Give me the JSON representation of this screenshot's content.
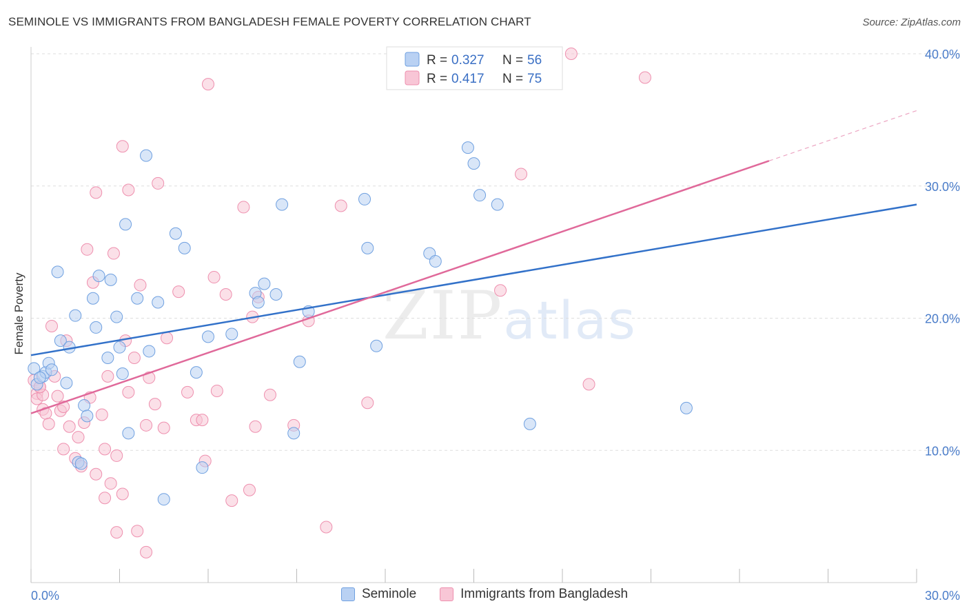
{
  "title": "SEMINOLE VS IMMIGRANTS FROM BANGLADESH FEMALE POVERTY CORRELATION CHART",
  "source": "Source: ZipAtlas.com",
  "watermark": {
    "zip": "ZIP",
    "atlas": "atlas"
  },
  "colors": {
    "blue": "#6fa0e0",
    "blue_fill": "#b9d1f3",
    "blue_line": "#3271c9",
    "pink": "#ee8fae",
    "pink_fill": "#f8c6d6",
    "pink_line": "#e0699a",
    "grid": "#dddddd",
    "axis_label": "#4a7cc9"
  },
  "legend": {
    "rows": [
      {
        "r_label": "R =",
        "r_value": "0.327",
        "n_label": "N =",
        "n_value": "56"
      },
      {
        "r_label": "R =",
        "r_value": "0.417",
        "n_label": "N =",
        "n_value": "75"
      }
    ]
  },
  "bottom_legend": {
    "series1": "Seminole",
    "series2": "Immigrants from Bangladesh"
  },
  "chart_data": {
    "type": "scatter",
    "title": "SEMINOLE VS IMMIGRANTS FROM BANGLADESH FEMALE POVERTY CORRELATION CHART",
    "xlabel": "",
    "ylabel": "Female Poverty",
    "xlim": [
      0,
      30
    ],
    "ylim": [
      0,
      40
    ],
    "x_tick_labels": [
      "0.0%",
      "30.0%"
    ],
    "y_ticks": [
      10,
      20,
      30,
      40
    ],
    "y_tick_labels": [
      "10.0%",
      "20.0%",
      "30.0%",
      "40.0%"
    ],
    "series": [
      {
        "name": "Seminole",
        "R": 0.327,
        "N": 56,
        "trend": {
          "x0": 0,
          "y0": 17.2,
          "x1": 30,
          "y1": 28.6
        },
        "points": [
          [
            0.1,
            16.2
          ],
          [
            0.2,
            15.0
          ],
          [
            0.4,
            15.6
          ],
          [
            0.5,
            15.9
          ],
          [
            0.6,
            16.6
          ],
          [
            0.7,
            16.1
          ],
          [
            0.9,
            23.5
          ],
          [
            1.0,
            18.3
          ],
          [
            1.2,
            15.1
          ],
          [
            1.3,
            17.8
          ],
          [
            1.5,
            20.2
          ],
          [
            1.6,
            9.1
          ],
          [
            1.7,
            9.0
          ],
          [
            1.8,
            13.4
          ],
          [
            1.9,
            12.6
          ],
          [
            2.1,
            21.5
          ],
          [
            2.2,
            19.3
          ],
          [
            2.3,
            23.2
          ],
          [
            2.6,
            17.0
          ],
          [
            2.7,
            22.9
          ],
          [
            2.9,
            20.1
          ],
          [
            3.0,
            17.8
          ],
          [
            3.1,
            15.8
          ],
          [
            3.2,
            27.1
          ],
          [
            3.3,
            11.3
          ],
          [
            3.6,
            21.5
          ],
          [
            3.9,
            32.3
          ],
          [
            4.0,
            17.5
          ],
          [
            4.3,
            21.2
          ],
          [
            4.5,
            6.3
          ],
          [
            4.9,
            26.4
          ],
          [
            5.2,
            25.3
          ],
          [
            5.6,
            15.9
          ],
          [
            5.8,
            8.7
          ],
          [
            6.0,
            18.6
          ],
          [
            6.8,
            18.8
          ],
          [
            7.6,
            21.9
          ],
          [
            7.7,
            21.2
          ],
          [
            7.9,
            22.6
          ],
          [
            8.3,
            21.8
          ],
          [
            8.5,
            28.6
          ],
          [
            8.9,
            11.3
          ],
          [
            9.1,
            16.7
          ],
          [
            9.4,
            20.5
          ],
          [
            11.3,
            29.0
          ],
          [
            11.4,
            25.3
          ],
          [
            11.7,
            17.9
          ],
          [
            13.5,
            24.9
          ],
          [
            13.7,
            24.3
          ],
          [
            14.8,
            32.9
          ],
          [
            15.0,
            31.7
          ],
          [
            15.2,
            29.3
          ],
          [
            15.8,
            28.6
          ],
          [
            16.9,
            12.0
          ],
          [
            22.2,
            13.2
          ],
          [
            0.3,
            15.5
          ]
        ]
      },
      {
        "name": "Immigrants from Bangladesh",
        "R": 0.417,
        "N": 75,
        "trend": {
          "x0": 0,
          "y0": 12.8,
          "x1": 25,
          "y1": 31.9
        },
        "trend_dashed": {
          "x0": 25,
          "y0": 31.9,
          "x1": 30,
          "y1": 35.7
        },
        "points": [
          [
            0.1,
            15.3
          ],
          [
            0.2,
            14.3
          ],
          [
            0.2,
            13.9
          ],
          [
            0.3,
            14.8
          ],
          [
            0.4,
            13.1
          ],
          [
            0.4,
            14.2
          ],
          [
            0.5,
            12.8
          ],
          [
            0.6,
            12.0
          ],
          [
            0.7,
            19.4
          ],
          [
            0.8,
            15.6
          ],
          [
            0.9,
            14.1
          ],
          [
            1.0,
            13.0
          ],
          [
            1.1,
            13.3
          ],
          [
            1.1,
            10.1
          ],
          [
            1.2,
            18.3
          ],
          [
            1.3,
            11.8
          ],
          [
            1.5,
            9.4
          ],
          [
            1.6,
            11.0
          ],
          [
            1.7,
            8.8
          ],
          [
            1.8,
            12.1
          ],
          [
            1.9,
            25.2
          ],
          [
            2.0,
            14.0
          ],
          [
            2.1,
            22.7
          ],
          [
            2.2,
            8.2
          ],
          [
            2.2,
            29.5
          ],
          [
            2.4,
            12.7
          ],
          [
            2.5,
            10.1
          ],
          [
            2.5,
            6.4
          ],
          [
            2.6,
            15.6
          ],
          [
            2.7,
            7.5
          ],
          [
            2.8,
            24.9
          ],
          [
            2.9,
            9.6
          ],
          [
            2.9,
            3.8
          ],
          [
            3.1,
            6.7
          ],
          [
            3.1,
            33.0
          ],
          [
            3.2,
            18.3
          ],
          [
            3.3,
            14.4
          ],
          [
            3.3,
            29.7
          ],
          [
            3.5,
            17.0
          ],
          [
            3.6,
            3.9
          ],
          [
            3.7,
            22.5
          ],
          [
            3.9,
            2.3
          ],
          [
            3.9,
            11.9
          ],
          [
            4.0,
            15.5
          ],
          [
            4.2,
            13.5
          ],
          [
            4.3,
            30.2
          ],
          [
            4.5,
            11.7
          ],
          [
            4.6,
            18.5
          ],
          [
            5.0,
            22.0
          ],
          [
            5.3,
            14.4
          ],
          [
            5.6,
            12.3
          ],
          [
            5.8,
            12.3
          ],
          [
            5.9,
            9.2
          ],
          [
            6.0,
            37.7
          ],
          [
            6.2,
            23.1
          ],
          [
            6.3,
            14.5
          ],
          [
            6.6,
            21.8
          ],
          [
            6.8,
            6.2
          ],
          [
            7.2,
            28.4
          ],
          [
            7.4,
            7.0
          ],
          [
            7.5,
            20.1
          ],
          [
            7.6,
            11.8
          ],
          [
            7.7,
            21.6
          ],
          [
            8.1,
            14.2
          ],
          [
            8.9,
            11.9
          ],
          [
            9.4,
            19.8
          ],
          [
            10.0,
            4.2
          ],
          [
            10.5,
            28.5
          ],
          [
            11.4,
            13.6
          ],
          [
            15.9,
            22.1
          ],
          [
            16.6,
            30.9
          ],
          [
            18.3,
            40.0
          ],
          [
            18.9,
            15.0
          ],
          [
            20.8,
            38.2
          ],
          [
            0.3,
            14.8
          ]
        ]
      }
    ]
  }
}
